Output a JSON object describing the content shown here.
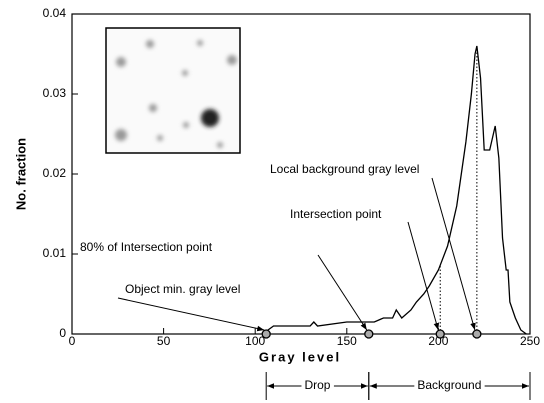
{
  "chart_data": {
    "type": "line",
    "xlabel": "Gray level",
    "ylabel": "No. fraction",
    "xlim": [
      0,
      250
    ],
    "ylim": [
      0,
      0.04
    ],
    "xticks": [
      0,
      50,
      100,
      150,
      200,
      250
    ],
    "yticks": [
      0,
      0.01,
      0.02,
      0.03,
      0.04
    ],
    "color": "#000000",
    "x": [
      105,
      107,
      110,
      130,
      132,
      134,
      150,
      165,
      170,
      175,
      177,
      180,
      185,
      188,
      192,
      195,
      200,
      205,
      210,
      215,
      218,
      220,
      221,
      223,
      225,
      228,
      231,
      233,
      235,
      237,
      238,
      239,
      242,
      245,
      248
    ],
    "values": [
      0,
      0.0005,
      0.001,
      0.001,
      0.0015,
      0.001,
      0.0015,
      0.0015,
      0.002,
      0.002,
      0.003,
      0.002,
      0.003,
      0.004,
      0.005,
      0.006,
      0.008,
      0.011,
      0.016,
      0.024,
      0.03,
      0.035,
      0.036,
      0.032,
      0.023,
      0.023,
      0.026,
      0.022,
      0.012,
      0.008,
      0.008,
      0.004,
      0.002,
      0.0005,
      0
    ],
    "annotations": [
      {
        "text": "Object min. gray level",
        "x": 106,
        "y": 0
      },
      {
        "text": "80% of Intersection point",
        "x": 162,
        "y": 0
      },
      {
        "text": "Intersection point",
        "x": 201,
        "y": 0,
        "guide": true
      },
      {
        "text": "Local background gray level",
        "x": 221,
        "y": 0,
        "guide": true
      }
    ],
    "regions": [
      {
        "label": "Drop",
        "from": 106,
        "to": 162
      },
      {
        "label": "Background",
        "from": 162,
        "to": 250
      }
    ]
  }
}
